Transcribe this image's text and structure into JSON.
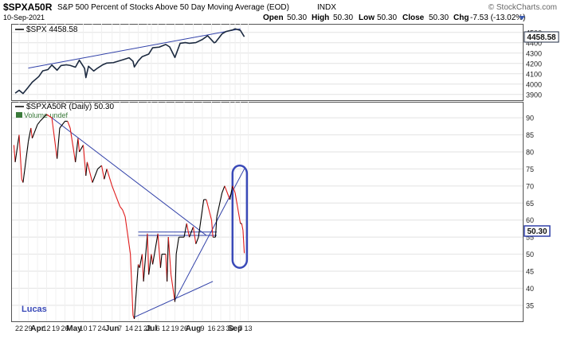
{
  "header": {
    "symbol": "$SPXA50R",
    "description": "S&P 500 Percent of Stocks Above 50 Day Moving Average (EOD)",
    "exchange": "INDX",
    "date": "10-Sep-2021",
    "open_label": "Open",
    "open": "50.30",
    "high_label": "High",
    "high": "50.30",
    "low_label": "Low",
    "low": "50.30",
    "close_label": "Close",
    "close": "50.30",
    "chg_label": "Chg",
    "chg": "-7.53 (-13.02%)",
    "watermark": "© StockCharts.com"
  },
  "annotation_text": "Lucas",
  "colors": {
    "spx_line": "#1c2a40",
    "breadth_up": "#000000",
    "breadth_down": "#e01b1b",
    "trendline": "#3040a8",
    "annotation": "#3a4ab8",
    "volume_legend": "#3a7a3a"
  },
  "chart_data": [
    {
      "type": "line",
      "legend": "$SPX 4458.58",
      "last_value_label": "4458.58",
      "ylim": [
        3860,
        4560
      ],
      "yticks": [
        3900,
        4000,
        4100,
        4200,
        4300,
        4400,
        4500
      ],
      "ytick_labels": [
        "3900",
        "4000",
        "4100",
        "4200",
        "4300",
        "4400",
        "4500"
      ],
      "x": [
        "Mar 19",
        "Mar 22",
        "Mar 25",
        "Mar 29",
        "Apr 1",
        "Apr 6",
        "Apr 9",
        "Apr 13",
        "Apr 16",
        "Apr 20",
        "Apr 23",
        "Apr 27",
        "Apr 30",
        "May 4",
        "May 7",
        "May 11",
        "May 12",
        "May 14",
        "May 18",
        "May 21",
        "May 25",
        "May 28",
        "Jun 2",
        "Jun 7",
        "Jun 10",
        "Jun 14",
        "Jun 17",
        "Jun 18",
        "Jun 21",
        "Jun 24",
        "Jun 29",
        "Jul 2",
        "Jul 7",
        "Jul 12",
        "Jul 15",
        "Jul 19",
        "Jul 23",
        "Jul 27",
        "Jul 30",
        "Aug 4",
        "Aug 9",
        "Aug 13",
        "Aug 18",
        "Aug 19",
        "Aug 24",
        "Aug 27",
        "Sep 1",
        "Sep 3",
        "Sep 7",
        "Sep 10"
      ],
      "values": [
        3913,
        3941,
        3909,
        3971,
        4019,
        4073,
        4128,
        4141,
        4185,
        4135,
        4180,
        4187,
        4181,
        4164,
        4232,
        4153,
        4063,
        4173,
        4127,
        4156,
        4188,
        4204,
        4208,
        4227,
        4239,
        4255,
        4221,
        4166,
        4225,
        4266,
        4291,
        4352,
        4358,
        4384,
        4360,
        4258,
        4395,
        4402,
        4395,
        4402,
        4432,
        4468,
        4400,
        4405,
        4486,
        4509,
        4524,
        4535,
        4520,
        4458.58
      ]
    },
    {
      "type": "line",
      "legend": "$SPXA50R (Daily) 50.30",
      "volume_legend": "Volume undef",
      "last_value_label": "50.30",
      "ylim": [
        31,
        94
      ],
      "yticks": [
        35,
        40,
        45,
        50,
        55,
        60,
        65,
        70,
        75,
        80,
        85,
        90
      ],
      "ytick_labels": [
        "35",
        "40",
        "45",
        "50",
        "55",
        "60",
        "65",
        "70",
        "75",
        "80",
        "85",
        "90"
      ],
      "x_tick_labels": [
        "22",
        "29",
        "Apr",
        "12",
        "19",
        "26",
        "May",
        "10",
        "17",
        "24",
        "Jun",
        "7",
        "14",
        "21",
        "28",
        "Jul",
        "6",
        "12",
        "19",
        "26",
        "Aug",
        "9",
        "16",
        "23",
        "30",
        "Sep",
        "7",
        "13"
      ],
      "x": [
        "Mar 18",
        "Mar 19",
        "Mar 22",
        "Mar 24",
        "Mar 25",
        "Mar 29",
        "Mar 31",
        "Apr 1",
        "Apr 5",
        "Apr 7",
        "Apr 12",
        "Apr 16",
        "Apr 20",
        "Apr 22",
        "Apr 26",
        "Apr 28",
        "Apr 30",
        "May 4",
        "May 6",
        "May 7",
        "May 10",
        "May 12",
        "May 13",
        "May 17",
        "May 19",
        "May 21",
        "May 24",
        "May 26",
        "May 28",
        "Jun 1",
        "Jun 3",
        "Jun 7",
        "Jun 9",
        "Jun 11",
        "Jun 15",
        "Jun 17",
        "Jun 18",
        "Jun 21",
        "Jun 22",
        "Jun 24",
        "Jun 25",
        "Jun 28",
        "Jun 29",
        "Jul 1",
        "Jul 2",
        "Jul 6",
        "Jul 8",
        "Jul 9",
        "Jul 12",
        "Jul 13",
        "Jul 14",
        "Jul 16",
        "Jul 19",
        "Jul 20",
        "Jul 22",
        "Jul 26",
        "Jul 28",
        "Jul 30",
        "Aug 2",
        "Aug 4",
        "Aug 6",
        "Aug 10",
        "Aug 12",
        "Aug 16",
        "Aug 17",
        "Aug 19",
        "Aug 20",
        "Aug 24",
        "Aug 26",
        "Aug 30",
        "Sep 1",
        "Sep 3",
        "Sep 7",
        "Sep 8",
        "Sep 9",
        "Sep 10"
      ],
      "values": [
        82,
        77,
        85,
        72,
        71,
        83,
        87,
        84,
        88,
        89,
        91,
        90,
        78,
        87,
        89,
        89,
        87,
        77,
        84,
        80,
        82,
        73,
        77,
        71,
        73,
        75,
        76,
        72,
        75,
        70,
        68,
        64,
        63,
        61,
        50,
        32,
        31,
        47,
        46,
        50,
        42,
        56,
        44,
        50,
        47,
        56,
        46,
        50,
        50,
        42,
        55,
        44,
        36,
        50,
        55,
        55,
        59,
        55,
        58,
        53,
        55,
        66,
        66,
        60,
        55,
        55,
        61,
        68,
        70,
        66,
        70,
        68,
        59,
        59,
        57,
        50.3
      ],
      "trendlines": [
        {
          "x0": "Apr 16",
          "y0": 90,
          "x1": "Aug 12",
          "y1": 55.5
        },
        {
          "x0": "Jun 21",
          "y0": 56.5,
          "x1": "Aug 20",
          "y1": 56.5
        },
        {
          "x0": "Jun 21",
          "y0": 55.5,
          "x1": "Aug 20",
          "y1": 55.5
        },
        {
          "x0": "Jun 18",
          "y0": 31.5,
          "x1": "Aug 17",
          "y1": 42
        },
        {
          "x0": "Jul 19",
          "y0": 36.5,
          "x1": "Sep 10",
          "y1": 75
        }
      ],
      "highlight_box": {
        "x0": "Sep 1",
        "x1": "Sep 12",
        "y0": 46,
        "y1": 76
      }
    }
  ]
}
